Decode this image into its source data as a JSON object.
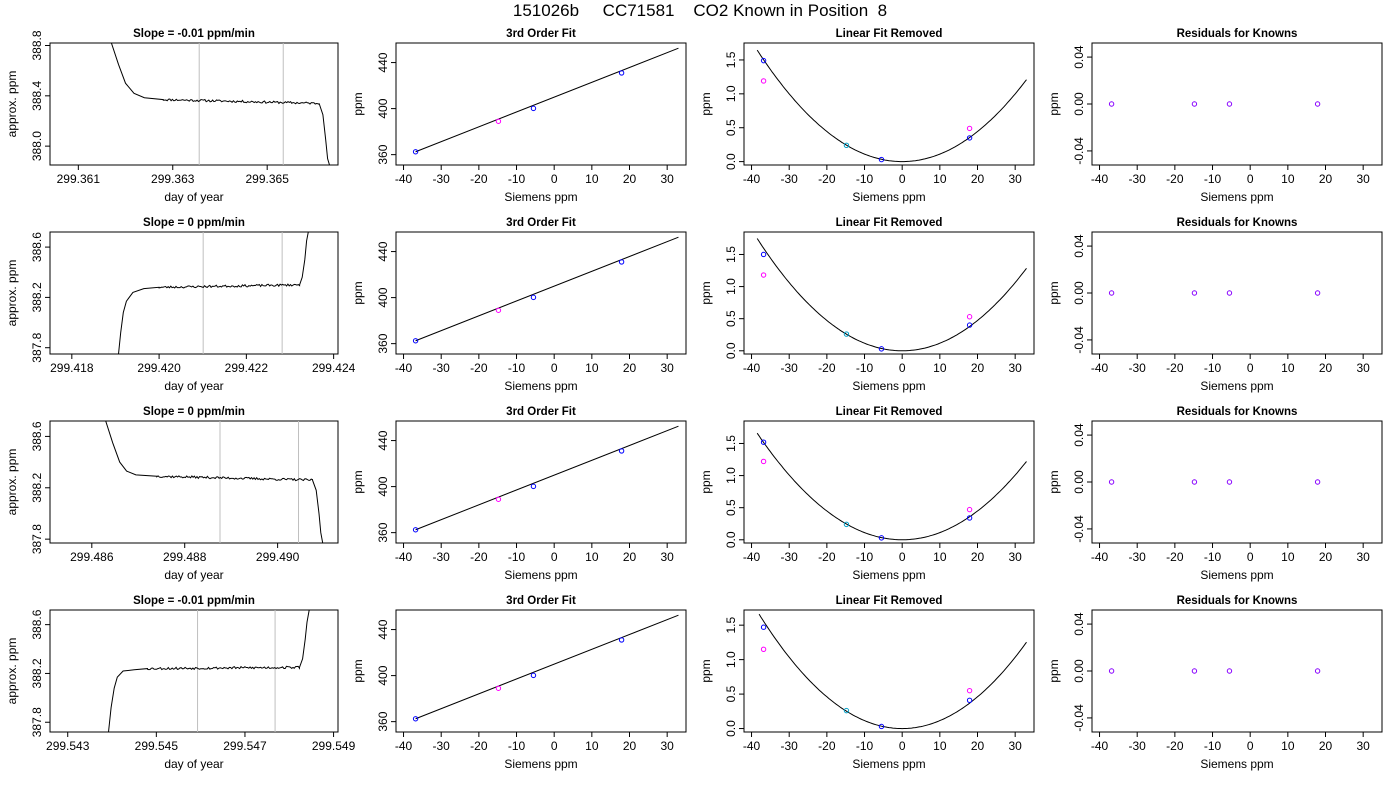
{
  "page": {
    "title": "151026b     CC71581    CO2 Known in Position  8"
  },
  "colors": {
    "line": "#000000",
    "frame": "#000000",
    "vline": "#bfbfbf",
    "blue": "#0000ff",
    "magenta": "#ff00ff",
    "cyan": "#00a0c8",
    "purple": "#8800ff"
  },
  "chart_data": [
    {
      "panel": "trace",
      "row": 1,
      "type": "line",
      "title": "Slope =  -0.01  ppm/min",
      "xlabel": "day of year",
      "ylabel": "approx. ppm",
      "xlim": [
        299.3604,
        299.3665
      ],
      "ylim": [
        387.85,
        388.82
      ],
      "xticks": [
        "299.361",
        "299.363",
        "299.365"
      ],
      "yticks": [
        "388.0",
        "388.4",
        "388.8"
      ],
      "vlines": [
        299.36356,
        299.36534
      ],
      "segments": [
        {
          "x": [
            299.3617,
            299.36185,
            299.362,
            299.36218,
            299.3624,
            299.3628
          ],
          "y": [
            388.82,
            388.65,
            388.5,
            388.42,
            388.385,
            388.37
          ]
        },
        {
          "x": [
            299.3628,
            299.3661
          ],
          "y": [
            388.37,
            388.34
          ],
          "noise": 0.009,
          "seed": 11
        },
        {
          "x": [
            299.3661,
            299.36618,
            299.36624,
            299.36628,
            299.36632
          ],
          "y": [
            388.34,
            388.25,
            388.05,
            387.9,
            387.85
          ]
        }
      ]
    },
    {
      "panel": "fit3",
      "row": 1,
      "type": "scatter",
      "title": "3rd Order Fit",
      "xlabel": "Siemens ppm",
      "ylabel": "ppm",
      "xlim": [
        -42,
        35
      ],
      "ylim": [
        351,
        457
      ],
      "xticks": [
        -40,
        -30,
        -20,
        -10,
        0,
        10,
        20,
        30
      ],
      "yticks": [
        360,
        400,
        440
      ],
      "line": {
        "x": [
          -36.8,
          33
        ],
        "y": [
          362.5,
          452.5
        ]
      },
      "points": [
        {
          "x": -36.8,
          "y": 362.5,
          "color": "blue"
        },
        {
          "x": -14.8,
          "y": 389.0,
          "color": "magenta"
        },
        {
          "x": -5.5,
          "y": 400.2,
          "color": "blue"
        },
        {
          "x": 17.9,
          "y": 431.0,
          "color": "blue"
        }
      ]
    },
    {
      "panel": "linres",
      "row": 1,
      "type": "scatter",
      "title": "Linear Fit Removed",
      "xlabel": "Siemens ppm",
      "ylabel": "ppm",
      "xlim": [
        -42,
        35
      ],
      "ylim": [
        -0.05,
        1.75
      ],
      "xticks": [
        -40,
        -30,
        -20,
        -10,
        0,
        10,
        20,
        30
      ],
      "yticks": [
        "0.0",
        "0.5",
        "1.0",
        "1.5"
      ],
      "curve": {
        "a": 0.00111,
        "v": 0.0,
        "xrange": [
          -38.5,
          33
        ]
      },
      "points": [
        {
          "x": -36.8,
          "y": 1.49,
          "color": "blue"
        },
        {
          "x": -36.8,
          "y": 1.19,
          "color": "magenta"
        },
        {
          "x": -14.8,
          "y": 0.24,
          "color": "cyan"
        },
        {
          "x": -5.5,
          "y": 0.03,
          "color": "blue"
        },
        {
          "x": 17.9,
          "y": 0.35,
          "color": "blue"
        },
        {
          "x": 17.9,
          "y": 0.49,
          "color": "magenta"
        }
      ]
    },
    {
      "panel": "resid",
      "row": 1,
      "type": "scatter",
      "title": "Residuals for Knowns",
      "xlabel": "Siemens ppm",
      "ylabel": "ppm",
      "xlim": [
        -42,
        35
      ],
      "ylim": [
        -0.052,
        0.052
      ],
      "xticks": [
        -40,
        -30,
        -20,
        -10,
        0,
        10,
        20,
        30
      ],
      "yticks": [
        "-0.04",
        "0.00",
        "0.04"
      ],
      "yvals": [
        -0.04,
        0,
        0.04
      ],
      "points": [
        {
          "x": -36.8,
          "y": 0,
          "color": "purple"
        },
        {
          "x": -14.8,
          "y": 0,
          "color": "purple"
        },
        {
          "x": -5.5,
          "y": 0,
          "color": "purple"
        },
        {
          "x": 17.9,
          "y": 0,
          "color": "purple"
        }
      ]
    },
    {
      "panel": "trace",
      "row": 2,
      "type": "line",
      "title": "Slope =  0  ppm/min",
      "xlabel": "day of year",
      "ylabel": "approx. ppm",
      "xlim": [
        299.4175,
        299.4241
      ],
      "ylim": [
        387.75,
        388.72
      ],
      "xticks": [
        "299.418",
        "299.420",
        "299.422",
        "299.424"
      ],
      "yticks": [
        "387.8",
        "388.2",
        "388.6"
      ],
      "vlines": [
        299.42101,
        299.42282
      ],
      "segments": [
        {
          "x": [
            299.41907,
            299.41912,
            299.41918,
            299.41925,
            299.4194,
            299.41965,
            299.42
          ],
          "y": [
            387.75,
            387.92,
            388.08,
            388.17,
            388.24,
            388.27,
            388.28
          ]
        },
        {
          "x": [
            299.42,
            299.42322
          ],
          "y": [
            388.28,
            388.3
          ],
          "noise": 0.009,
          "seed": 23
        },
        {
          "x": [
            299.42322,
            299.42328,
            299.42334,
            299.42338,
            299.42342
          ],
          "y": [
            388.3,
            388.36,
            388.5,
            388.65,
            388.72
          ]
        }
      ]
    },
    {
      "panel": "fit3",
      "row": 2,
      "type": "scatter",
      "title": "3rd Order Fit",
      "xlabel": "Siemens ppm",
      "ylabel": "ppm",
      "xlim": [
        -42,
        35
      ],
      "ylim": [
        351,
        457
      ],
      "xticks": [
        -40,
        -30,
        -20,
        -10,
        0,
        10,
        20,
        30
      ],
      "yticks": [
        360,
        400,
        440
      ],
      "line": {
        "x": [
          -36.8,
          33
        ],
        "y": [
          362.5,
          452.5
        ]
      },
      "points": [
        {
          "x": -36.8,
          "y": 362.5,
          "color": "blue"
        },
        {
          "x": -14.8,
          "y": 389.0,
          "color": "magenta"
        },
        {
          "x": -5.5,
          "y": 400.2,
          "color": "blue"
        },
        {
          "x": 17.9,
          "y": 431.0,
          "color": "blue"
        }
      ]
    },
    {
      "panel": "linres",
      "row": 2,
      "type": "scatter",
      "title": "Linear Fit Removed",
      "xlabel": "Siemens ppm",
      "ylabel": "ppm",
      "xlim": [
        -42,
        35
      ],
      "ylim": [
        -0.05,
        1.85
      ],
      "xticks": [
        -40,
        -30,
        -20,
        -10,
        0,
        10,
        20,
        30
      ],
      "yticks": [
        "0.0",
        "0.5",
        "1.0",
        "1.5"
      ],
      "curve": {
        "a": 0.00118,
        "v": 0.0,
        "xrange": [
          -38.5,
          33
        ]
      },
      "points": [
        {
          "x": -36.8,
          "y": 1.5,
          "color": "blue"
        },
        {
          "x": -36.8,
          "y": 1.18,
          "color": "magenta"
        },
        {
          "x": -14.8,
          "y": 0.26,
          "color": "cyan"
        },
        {
          "x": -5.5,
          "y": 0.03,
          "color": "blue"
        },
        {
          "x": 17.9,
          "y": 0.4,
          "color": "blue"
        },
        {
          "x": 17.9,
          "y": 0.53,
          "color": "magenta"
        }
      ]
    },
    {
      "panel": "resid",
      "row": 2,
      "type": "scatter",
      "title": "Residuals for Knowns",
      "xlabel": "Siemens ppm",
      "ylabel": "ppm",
      "xlim": [
        -42,
        35
      ],
      "ylim": [
        -0.052,
        0.052
      ],
      "xticks": [
        -40,
        -30,
        -20,
        -10,
        0,
        10,
        20,
        30
      ],
      "yticks": [
        "-0.04",
        "0.00",
        "0.04"
      ],
      "yvals": [
        -0.04,
        0,
        0.04
      ],
      "points": [
        {
          "x": -36.8,
          "y": 0,
          "color": "purple"
        },
        {
          "x": -14.8,
          "y": 0,
          "color": "purple"
        },
        {
          "x": -5.5,
          "y": 0,
          "color": "purple"
        },
        {
          "x": 17.9,
          "y": 0,
          "color": "purple"
        }
      ]
    },
    {
      "panel": "trace",
      "row": 3,
      "type": "line",
      "title": "Slope =  0  ppm/min",
      "xlabel": "day of year",
      "ylabel": "approx. ppm",
      "xlim": [
        299.4851,
        299.4913
      ],
      "ylim": [
        387.77,
        388.72
      ],
      "xticks": [
        "299.486",
        "299.488",
        "299.490"
      ],
      "yticks": [
        "387.8",
        "388.2",
        "388.6"
      ],
      "vlines": [
        299.48876,
        299.49045
      ],
      "segments": [
        {
          "x": [
            299.4863,
            299.48645,
            299.4866,
            299.48675,
            299.48695,
            299.4874
          ],
          "y": [
            388.72,
            388.55,
            388.4,
            388.33,
            388.3,
            388.29
          ]
        },
        {
          "x": [
            299.4874,
            299.49075
          ],
          "y": [
            388.29,
            388.26
          ],
          "noise": 0.009,
          "seed": 37
        },
        {
          "x": [
            299.49075,
            299.49083,
            299.49089,
            299.49093,
            299.49097
          ],
          "y": [
            388.26,
            388.18,
            388.0,
            387.85,
            387.77
          ]
        }
      ]
    },
    {
      "panel": "fit3",
      "row": 3,
      "type": "scatter",
      "title": "3rd Order Fit",
      "xlabel": "Siemens ppm",
      "ylabel": "ppm",
      "xlim": [
        -42,
        35
      ],
      "ylim": [
        351,
        457
      ],
      "xticks": [
        -40,
        -30,
        -20,
        -10,
        0,
        10,
        20,
        30
      ],
      "yticks": [
        360,
        400,
        440
      ],
      "line": {
        "x": [
          -36.8,
          33
        ],
        "y": [
          362.5,
          452.5
        ]
      },
      "points": [
        {
          "x": -36.8,
          "y": 362.5,
          "color": "blue"
        },
        {
          "x": -14.8,
          "y": 389.0,
          "color": "magenta"
        },
        {
          "x": -5.5,
          "y": 400.2,
          "color": "blue"
        },
        {
          "x": 17.9,
          "y": 431.0,
          "color": "blue"
        }
      ]
    },
    {
      "panel": "linres",
      "row": 3,
      "type": "scatter",
      "title": "Linear Fit Removed",
      "xlabel": "Siemens ppm",
      "ylabel": "ppm",
      "xlim": [
        -42,
        35
      ],
      "ylim": [
        -0.05,
        1.85
      ],
      "xticks": [
        -40,
        -30,
        -20,
        -10,
        0,
        10,
        20,
        30
      ],
      "yticks": [
        "0.0",
        "0.5",
        "1.0",
        "1.5"
      ],
      "curve": {
        "a": 0.00112,
        "v": 0.0,
        "xrange": [
          -38.5,
          33
        ]
      },
      "points": [
        {
          "x": -36.8,
          "y": 1.52,
          "color": "blue"
        },
        {
          "x": -36.8,
          "y": 1.22,
          "color": "magenta"
        },
        {
          "x": -14.8,
          "y": 0.24,
          "color": "cyan"
        },
        {
          "x": -5.5,
          "y": 0.03,
          "color": "blue"
        },
        {
          "x": 17.9,
          "y": 0.34,
          "color": "blue"
        },
        {
          "x": 17.9,
          "y": 0.47,
          "color": "magenta"
        }
      ]
    },
    {
      "panel": "resid",
      "row": 3,
      "type": "scatter",
      "title": "Residuals for Knowns",
      "xlabel": "Siemens ppm",
      "ylabel": "ppm",
      "xlim": [
        -42,
        35
      ],
      "ylim": [
        -0.052,
        0.052
      ],
      "xticks": [
        -40,
        -30,
        -20,
        -10,
        0,
        10,
        20,
        30
      ],
      "yticks": [
        "-0.04",
        "0.00",
        "0.04"
      ],
      "yvals": [
        -0.04,
        0,
        0.04
      ],
      "points": [
        {
          "x": -36.8,
          "y": 0,
          "color": "purple"
        },
        {
          "x": -14.8,
          "y": 0,
          "color": "purple"
        },
        {
          "x": -5.5,
          "y": 0,
          "color": "purple"
        },
        {
          "x": 17.9,
          "y": 0,
          "color": "purple"
        }
      ]
    },
    {
      "panel": "trace",
      "row": 4,
      "type": "line",
      "title": "Slope =  -0.01  ppm/min",
      "xlabel": "day of year",
      "ylabel": "approx. ppm",
      "xlim": [
        299.5426,
        299.5491
      ],
      "ylim": [
        387.72,
        388.72
      ],
      "xticks": [
        "299.543",
        "299.545",
        "299.547",
        "299.549"
      ],
      "yticks": [
        "387.8",
        "388.2",
        "388.6"
      ],
      "vlines": [
        299.54593,
        299.54768
      ],
      "segments": [
        {
          "x": [
            299.54392,
            299.54398,
            299.54405,
            299.54412,
            299.54425,
            299.5445,
            299.5448
          ],
          "y": [
            387.72,
            387.92,
            388.08,
            388.17,
            388.22,
            388.23,
            388.24
          ]
        },
        {
          "x": [
            299.5448,
            299.54823
          ],
          "y": [
            388.24,
            388.25
          ],
          "noise": 0.01,
          "seed": 53
        },
        {
          "x": [
            299.54823,
            299.5483,
            299.54836,
            299.5484,
            299.54845
          ],
          "y": [
            388.25,
            388.32,
            388.48,
            388.62,
            388.72
          ]
        }
      ]
    },
    {
      "panel": "fit3",
      "row": 4,
      "type": "scatter",
      "title": "3rd Order Fit",
      "xlabel": "Siemens ppm",
      "ylabel": "ppm",
      "xlim": [
        -42,
        35
      ],
      "ylim": [
        351,
        457
      ],
      "xticks": [
        -40,
        -30,
        -20,
        -10,
        0,
        10,
        20,
        30
      ],
      "yticks": [
        360,
        400,
        440
      ],
      "line": {
        "x": [
          -36.8,
          33
        ],
        "y": [
          362.5,
          452.5
        ]
      },
      "points": [
        {
          "x": -36.8,
          "y": 362.5,
          "color": "blue"
        },
        {
          "x": -14.8,
          "y": 389.0,
          "color": "magenta"
        },
        {
          "x": -5.5,
          "y": 400.2,
          "color": "blue"
        },
        {
          "x": 17.9,
          "y": 431.0,
          "color": "blue"
        }
      ]
    },
    {
      "panel": "linres",
      "row": 4,
      "type": "scatter",
      "title": "Linear Fit Removed",
      "xlabel": "Siemens ppm",
      "ylabel": "ppm",
      "xlim": [
        -42,
        35
      ],
      "ylim": [
        -0.05,
        1.72
      ],
      "xticks": [
        -40,
        -30,
        -20,
        -10,
        0,
        10,
        20,
        30
      ],
      "yticks": [
        "0.0",
        "0.5",
        "1.0",
        "1.5"
      ],
      "curve": {
        "a": 0.00115,
        "v": 0.0,
        "xrange": [
          -38.0,
          33
        ]
      },
      "points": [
        {
          "x": -36.8,
          "y": 1.47,
          "color": "blue"
        },
        {
          "x": -36.8,
          "y": 1.15,
          "color": "magenta"
        },
        {
          "x": -14.8,
          "y": 0.26,
          "color": "cyan"
        },
        {
          "x": -5.5,
          "y": 0.03,
          "color": "blue"
        },
        {
          "x": 17.9,
          "y": 0.41,
          "color": "blue"
        },
        {
          "x": 17.9,
          "y": 0.55,
          "color": "magenta"
        }
      ]
    },
    {
      "panel": "resid",
      "row": 4,
      "type": "scatter",
      "title": "Residuals for Knowns",
      "xlabel": "Siemens ppm",
      "ylabel": "ppm",
      "xlim": [
        -42,
        35
      ],
      "ylim": [
        -0.052,
        0.052
      ],
      "xticks": [
        -40,
        -30,
        -20,
        -10,
        0,
        10,
        20,
        30
      ],
      "yticks": [
        "-0.04",
        "0.00",
        "0.04"
      ],
      "yvals": [
        -0.04,
        0,
        0.04
      ],
      "points": [
        {
          "x": -36.8,
          "y": 0,
          "color": "purple"
        },
        {
          "x": -14.8,
          "y": 0,
          "color": "purple"
        },
        {
          "x": -5.5,
          "y": 0,
          "color": "purple"
        },
        {
          "x": 17.9,
          "y": 0,
          "color": "purple"
        }
      ]
    }
  ]
}
